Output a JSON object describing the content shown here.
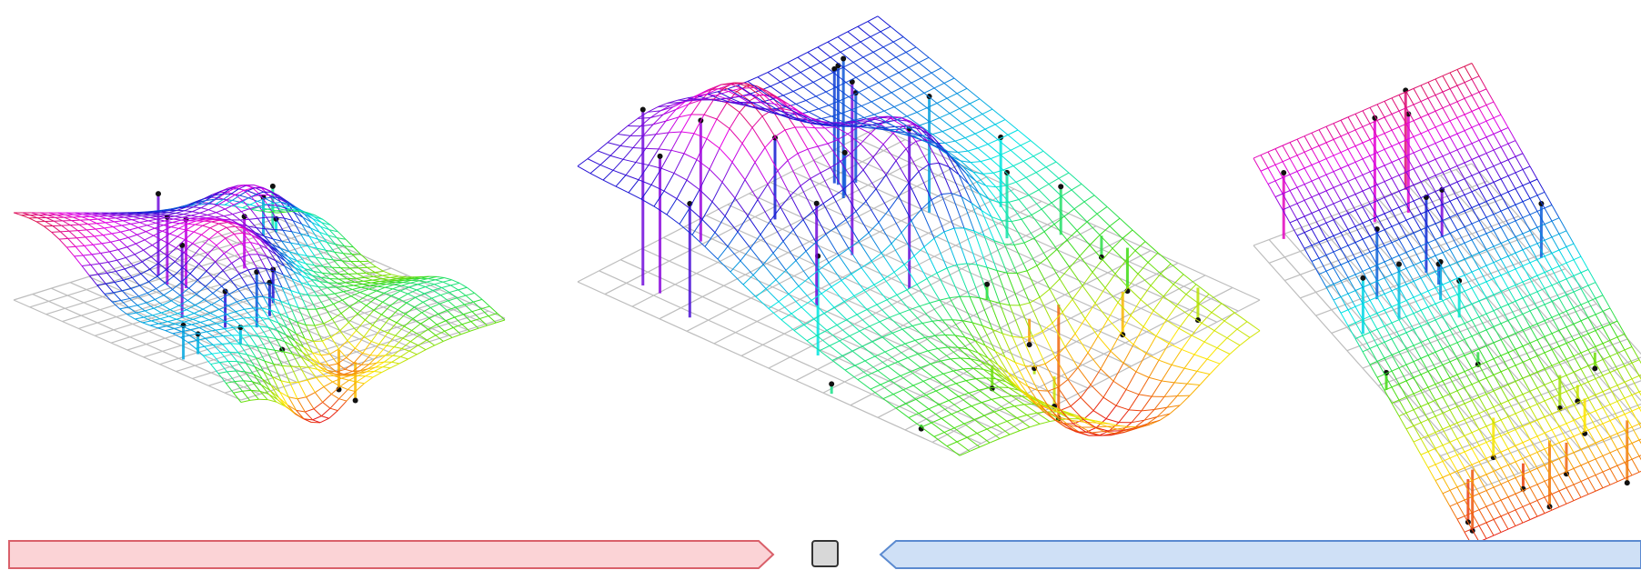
{
  "figure": {
    "panels": [
      {
        "id": "underfit",
        "shape": "wavy"
      },
      {
        "id": "balanced",
        "shape": "peaked"
      },
      {
        "id": "overfit",
        "shape": "planar"
      }
    ],
    "colors": {
      "banner_left_fill": "#fbd3d6",
      "banner_left_stroke": "#d9606a",
      "banner_right_fill": "#cfe0f6",
      "banner_right_stroke": "#5b8ad0",
      "center_box_fill": "#d8d8d8",
      "center_box_stroke": "#333333",
      "floor_grid": "#bdbdbd",
      "sample_point": "#111111"
    },
    "icons": [
      "left-arrow-banner",
      "right-arrow-banner",
      "checkbox-square-icon"
    ]
  }
}
